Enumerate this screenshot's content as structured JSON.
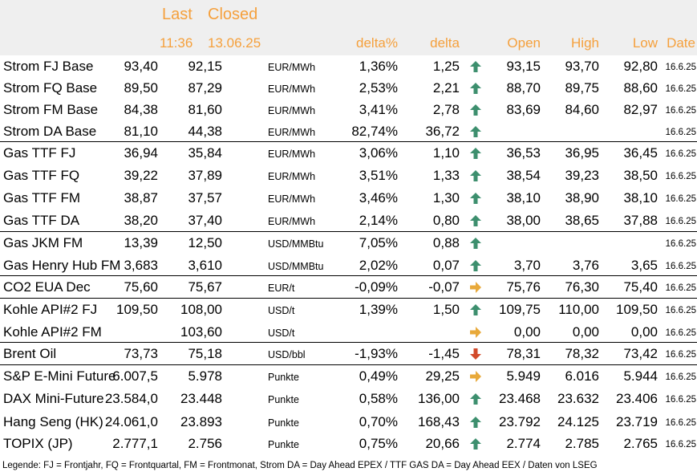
{
  "header": {
    "last_label": "Last",
    "closed_label": "Closed",
    "last_time": "11:36",
    "closed_date": "13.06.25",
    "col_delta_pct": "delta%",
    "col_delta": "delta",
    "col_open": "Open",
    "col_high": "High",
    "col_low": "Low",
    "col_date": "Date"
  },
  "colors": {
    "accent": "#f5a03c",
    "header_bg": "#efefef",
    "up": "#3d8f6e",
    "flat": "#e8a93a",
    "down": "#d24a2a"
  },
  "rows": [
    {
      "name": "Strom FJ Base",
      "last": "93,40",
      "closed": "92,15",
      "unit": "EUR/MWh",
      "dpct": "1,36%",
      "delta": "1,25",
      "trend": "up",
      "open": "93,15",
      "high": "93,70",
      "low": "92,80",
      "date": "16.6.25"
    },
    {
      "name": "Strom FQ Base",
      "last": "89,50",
      "closed": "87,29",
      "unit": "EUR/MWh",
      "dpct": "2,53%",
      "delta": "2,21",
      "trend": "up",
      "open": "88,70",
      "high": "89,75",
      "low": "88,60",
      "date": "16.6.25"
    },
    {
      "name": "Strom FM Base",
      "last": "84,38",
      "closed": "81,60",
      "unit": "EUR/MWh",
      "dpct": "3,41%",
      "delta": "2,78",
      "trend": "up",
      "open": "83,69",
      "high": "84,60",
      "low": "82,97",
      "date": "16.6.25"
    },
    {
      "name": "Strom DA Base",
      "last": "81,10",
      "closed": "44,38",
      "unit": "EUR/MWh",
      "dpct": "82,74%",
      "delta": "36,72",
      "trend": "up",
      "open": "",
      "high": "",
      "low": "",
      "date": "16.6.25"
    },
    {
      "name": "Gas TTF FJ",
      "last": "36,94",
      "closed": "35,84",
      "unit": "EUR/MWh",
      "dpct": "3,06%",
      "delta": "1,10",
      "trend": "up",
      "open": "36,53",
      "high": "36,95",
      "low": "36,45",
      "date": "16.6.25"
    },
    {
      "name": "Gas TTF FQ",
      "last": "39,22",
      "closed": "37,89",
      "unit": "EUR/MWh",
      "dpct": "3,51%",
      "delta": "1,33",
      "trend": "up",
      "open": "38,54",
      "high": "39,23",
      "low": "38,50",
      "date": "16.6.25"
    },
    {
      "name": "Gas TTF FM",
      "last": "38,87",
      "closed": "37,57",
      "unit": "EUR/MWh",
      "dpct": "3,46%",
      "delta": "1,30",
      "trend": "up",
      "open": "38,10",
      "high": "38,90",
      "low": "38,10",
      "date": "16.6.25"
    },
    {
      "name": "Gas TTF DA",
      "last": "38,20",
      "closed": "37,40",
      "unit": "EUR/MWh",
      "dpct": "2,14%",
      "delta": "0,80",
      "trend": "up",
      "open": "38,00",
      "high": "38,65",
      "low": "37,88",
      "date": "16.6.25"
    },
    {
      "name": "Gas JKM FM",
      "last": "13,39",
      "closed": "12,50",
      "unit": "USD/MMBtu",
      "dpct": "7,05%",
      "delta": "0,88",
      "trend": "up",
      "open": "",
      "high": "",
      "low": "",
      "date": "16.6.25"
    },
    {
      "name": "Gas Henry Hub FM",
      "last": "3,683",
      "closed": "3,610",
      "unit": "USD/MMBtu",
      "dpct": "2,02%",
      "delta": "0,07",
      "trend": "up",
      "open": "3,70",
      "high": "3,76",
      "low": "3,65",
      "date": "16.6.25"
    },
    {
      "name": "CO2 EUA Dec",
      "last": "75,60",
      "closed": "75,67",
      "unit": "EUR/t",
      "dpct": "-0,09%",
      "delta": "-0,07",
      "trend": "flat",
      "open": "75,76",
      "high": "76,30",
      "low": "75,40",
      "date": "16.6.25"
    },
    {
      "name": "Kohle API#2 FJ",
      "last": "109,50",
      "closed": "108,00",
      "unit": "USD/t",
      "dpct": "1,39%",
      "delta": "1,50",
      "trend": "up",
      "open": "109,75",
      "high": "110,00",
      "low": "109,50",
      "date": "16.6.25"
    },
    {
      "name": "Kohle API#2 FM",
      "last": "",
      "closed": "103,60",
      "unit": "USD/t",
      "dpct": "",
      "delta": "",
      "trend": "flat",
      "open": "0,00",
      "high": "0,00",
      "low": "0,00",
      "date": "16.6.25"
    },
    {
      "name": "Brent Oil",
      "last": "73,73",
      "closed": "75,18",
      "unit": "USD/bbl",
      "dpct": "-1,93%",
      "delta": "-1,45",
      "trend": "down",
      "open": "78,31",
      "high": "78,32",
      "low": "73,42",
      "date": "16.6.25"
    },
    {
      "name": "S&P E-Mini Future",
      "last": "6.007,5",
      "closed": "5.978",
      "unit": "Punkte",
      "dpct": "0,49%",
      "delta": "29,25",
      "trend": "flat",
      "open": "5.949",
      "high": "6.016",
      "low": "5.944",
      "date": "16.6.25"
    },
    {
      "name": "DAX Mini-Future",
      "last": "23.584,0",
      "closed": "23.448",
      "unit": "Punkte",
      "dpct": "0,58%",
      "delta": "136,00",
      "trend": "up",
      "open": "23.468",
      "high": "23.632",
      "low": "23.406",
      "date": "16.6.25"
    },
    {
      "name": "Hang Seng (HK)",
      "last": "24.061,0",
      "closed": "23.893",
      "unit": "Punkte",
      "dpct": "0,70%",
      "delta": "168,43",
      "trend": "up",
      "open": "23.792",
      "high": "24.125",
      "low": "23.719",
      "date": "16.6.25"
    },
    {
      "name": "TOPIX (JP)",
      "last": "2.777,1",
      "closed": "2.756",
      "unit": "Punkte",
      "dpct": "0,75%",
      "delta": "20,66",
      "trend": "up",
      "open": "2.774",
      "high": "2.785",
      "low": "2.765",
      "date": "16.6.25"
    }
  ],
  "legend": "Legende: FJ = Frontjahr, FQ = Frontquartal, FM = Frontmonat, Strom DA = Day Ahead EPEX / TTF GAS DA = Day Ahead EEX / Daten von LSEG"
}
